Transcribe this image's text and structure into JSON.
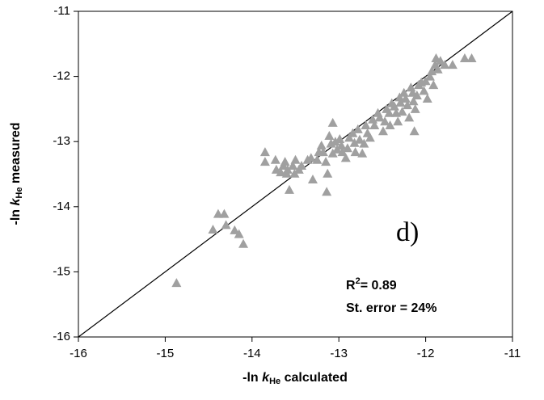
{
  "chart_data": {
    "type": "scatter",
    "xlabel": {
      "prefix": "-ln",
      "symbol": "k",
      "subscript": "He",
      "suffix": "calculated"
    },
    "ylabel": {
      "prefix": "-ln",
      "symbol": "k",
      "subscript": "He",
      "suffix": "measured"
    },
    "annotations": {
      "panel": "d)",
      "r2_symbol": "R",
      "r2_superscript": "2",
      "r2_value": "= 0.89",
      "error": "St. error = 24%"
    },
    "color": "#a0a0a0",
    "identity_line": true,
    "xlim": [
      -16,
      -11
    ],
    "xticks": [
      -16,
      -15,
      -14,
      -13,
      -12,
      -11
    ],
    "ylim": [
      -16,
      -11
    ],
    "yticks": [
      -16,
      -15,
      -14,
      -13,
      -12,
      -11
    ],
    "x": [
      -14.87,
      -14.45,
      -14.39,
      -14.32,
      -14.3,
      -14.2,
      -14.15,
      -14.1,
      -13.85,
      -13.85,
      -13.73,
      -13.72,
      -13.67,
      -13.64,
      -13.62,
      -13.59,
      -13.6,
      -13.57,
      -13.53,
      -13.51,
      -13.5,
      -13.46,
      -13.43,
      -13.36,
      -13.32,
      -13.3,
      -13.25,
      -13.23,
      -13.2,
      -13.18,
      -13.15,
      -13.14,
      -13.13,
      -13.11,
      -13.09,
      -13.07,
      -13.04,
      -13.02,
      -12.99,
      -12.97,
      -13.07,
      -12.96,
      -12.92,
      -12.9,
      -12.88,
      -12.84,
      -12.82,
      -12.81,
      -12.78,
      -12.76,
      -12.73,
      -12.71,
      -12.69,
      -12.67,
      -12.64,
      -12.61,
      -12.59,
      -12.55,
      -12.53,
      -12.49,
      -12.47,
      -12.45,
      -12.42,
      -12.41,
      -12.39,
      -12.36,
      -12.34,
      -12.32,
      -12.3,
      -12.29,
      -12.27,
      -12.25,
      -12.23,
      -12.21,
      -12.19,
      -12.17,
      -12.15,
      -12.14,
      -12.12,
      -12.1,
      -12.08,
      -12.05,
      -12.02,
      -12.0,
      -11.98,
      -11.95,
      -11.93,
      -11.91,
      -11.89,
      -11.86,
      -11.83,
      -11.78,
      -11.69,
      -11.55,
      -11.47,
      -11.88,
      -12.13
    ],
    "values": [
      -15.17,
      -14.35,
      -14.11,
      -14.11,
      -14.28,
      -14.36,
      -14.42,
      -14.57,
      -13.16,
      -13.31,
      -13.28,
      -13.43,
      -13.47,
      -13.37,
      -13.31,
      -13.43,
      -13.49,
      -13.74,
      -13.37,
      -13.49,
      -13.28,
      -13.43,
      -13.37,
      -13.28,
      -13.25,
      -13.58,
      -13.28,
      -13.16,
      -13.06,
      -13.16,
      -13.31,
      -13.77,
      -13.49,
      -12.91,
      -13.03,
      -13.18,
      -13.0,
      -13.12,
      -12.96,
      -13.06,
      -12.71,
      -13.16,
      -13.25,
      -13.1,
      -12.94,
      -12.87,
      -13.02,
      -13.16,
      -12.81,
      -12.97,
      -13.18,
      -13.03,
      -12.75,
      -12.87,
      -12.94,
      -12.66,
      -12.75,
      -12.56,
      -12.63,
      -12.84,
      -12.69,
      -12.5,
      -12.56,
      -12.75,
      -12.41,
      -12.46,
      -12.56,
      -12.69,
      -12.32,
      -12.4,
      -12.54,
      -12.25,
      -12.34,
      -12.44,
      -12.63,
      -12.17,
      -12.25,
      -12.38,
      -12.5,
      -12.29,
      -12.13,
      -12.09,
      -12.22,
      -12.07,
      -12.34,
      -12.0,
      -11.92,
      -12.13,
      -11.82,
      -11.89,
      -11.76,
      -11.82,
      -11.82,
      -11.72,
      -11.72,
      -11.72,
      -12.84
    ]
  }
}
